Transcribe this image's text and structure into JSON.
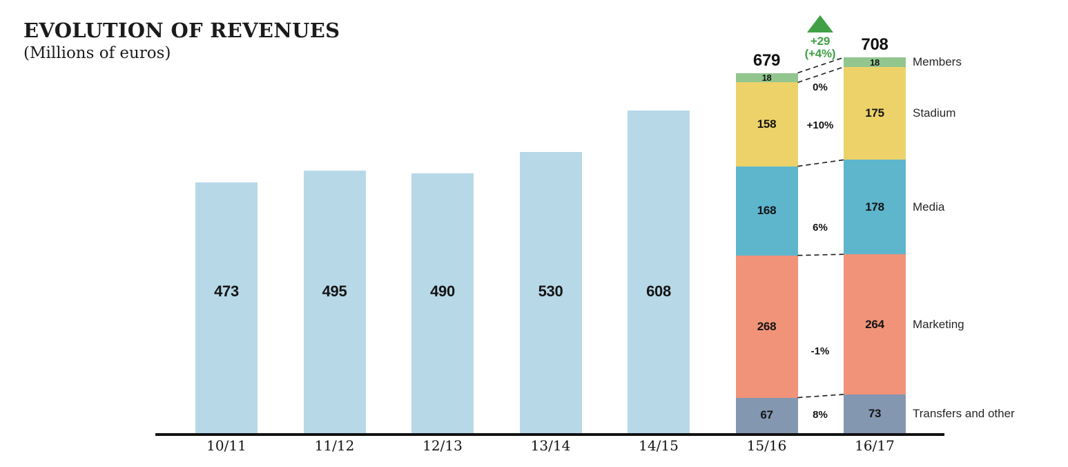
{
  "header": {
    "title": "EVOLUTION OF REVENUES",
    "subtitle": "(Millions of euros)"
  },
  "chart_data": {
    "type": "bar",
    "title": "EVOLUTION OF REVENUES",
    "subtitle": "(Millions of euros)",
    "unit": "Millions of euros",
    "grid": false,
    "legend_position": "right",
    "categories": [
      "10/11",
      "11/12",
      "12/13",
      "13/14",
      "14/15",
      "15/16",
      "16/17"
    ],
    "totals": [
      473,
      495,
      490,
      530,
      608,
      679,
      708
    ],
    "simple_bars": {
      "categories": [
        "10/11",
        "11/12",
        "12/13",
        "13/14",
        "14/15"
      ],
      "values": [
        473,
        495,
        490,
        530,
        608
      ],
      "color": "#b7d8e7"
    },
    "stacked_bars": {
      "categories": [
        "15/16",
        "16/17"
      ],
      "totals": [
        679,
        708
      ],
      "segments": [
        {
          "label": "Members",
          "color": "#92c68e",
          "values": [
            18,
            18
          ],
          "change": "0%"
        },
        {
          "label": "Stadium",
          "color": "#edd269",
          "values": [
            158,
            175
          ],
          "change": "+10%"
        },
        {
          "label": "Media",
          "color": "#5eb6cd",
          "values": [
            168,
            178
          ],
          "change": "6%"
        },
        {
          "label": "Marketing",
          "color": "#f19379",
          "values": [
            268,
            264
          ],
          "change": "-1%"
        },
        {
          "label": "Transfers and other",
          "color": "#8497b1",
          "values": [
            67,
            73
          ],
          "change": "8%"
        }
      ]
    },
    "total_change_annotation": {
      "delta": "+29",
      "percent": "(+4%)",
      "color": "#41a046",
      "icon": "up-triangle"
    }
  }
}
